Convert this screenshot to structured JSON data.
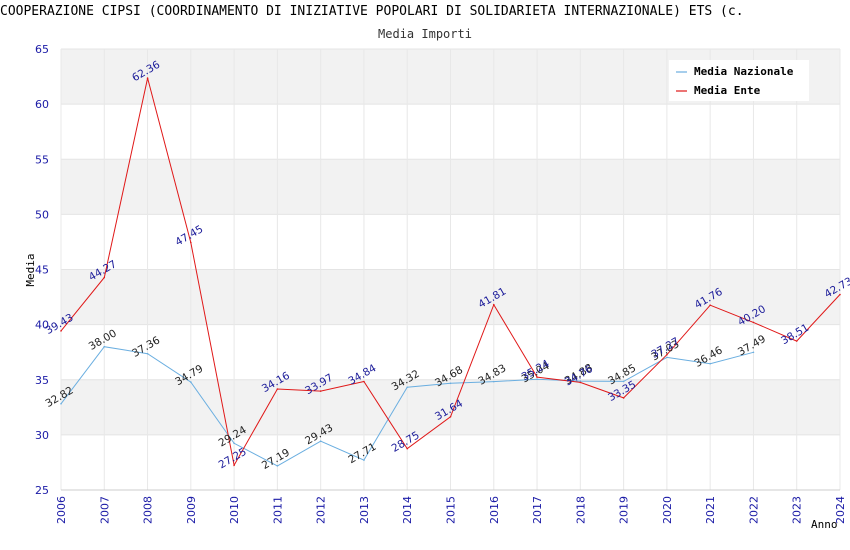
{
  "title": "COOPERAZIONE CIPSI (COORDINAMENTO DI INIZIATIVE POPOLARI DI SOLIDARIETA INTERNAZIONALE) ETS (c.",
  "subtitle": "Media Importi",
  "colors": {
    "nazionale": "#6aaee0",
    "ente": "#e01818",
    "band": "#f2f2f2",
    "tick": "#1a1aa6"
  },
  "chart_data": {
    "type": "line",
    "xlabel": "Anno",
    "ylabel": "Media",
    "ylim": [
      25,
      65
    ],
    "yticks": [
      25,
      30,
      35,
      40,
      45,
      50,
      55,
      60,
      65
    ],
    "x": [
      2006,
      2007,
      2008,
      2009,
      2010,
      2011,
      2012,
      2013,
      2014,
      2015,
      2016,
      2017,
      2018,
      2019,
      2020,
      2021,
      2022,
      2023,
      2024
    ],
    "legend_position": "top-right",
    "series": [
      {
        "name": "Media Nazionale",
        "key": "nazionale",
        "values": [
          32.82,
          38.0,
          37.36,
          34.79,
          29.24,
          27.19,
          29.43,
          27.71,
          34.32,
          34.68,
          34.83,
          35.04,
          34.88,
          34.85,
          37.03,
          36.46,
          37.49,
          null,
          null
        ],
        "labels": [
          "32.82",
          "38.00",
          "37.36",
          "34.79",
          "29.24",
          "27.19",
          "29.43",
          "27.71",
          "34.32",
          "34.68",
          "34.83",
          "35.04",
          "34.88",
          "34.85",
          "37.03",
          "36.46",
          "37.49",
          null,
          null
        ]
      },
      {
        "name": "Media Ente",
        "key": "ente",
        "values": [
          39.43,
          44.27,
          62.36,
          47.45,
          27.25,
          34.16,
          33.97,
          34.84,
          28.75,
          31.64,
          41.81,
          35.24,
          34.76,
          33.35,
          37.27,
          41.76,
          40.2,
          38.51,
          42.73
        ],
        "labels": [
          "39.43",
          "44.27",
          "62.36",
          "47.45",
          "27.25",
          "34.16",
          "33.97",
          "34.84",
          "28.75",
          "31.64",
          "41.81",
          "35.24",
          "34.76",
          "33.35",
          "37.27",
          "41.76",
          "40.20",
          "38.51",
          "42.73"
        ]
      }
    ]
  }
}
